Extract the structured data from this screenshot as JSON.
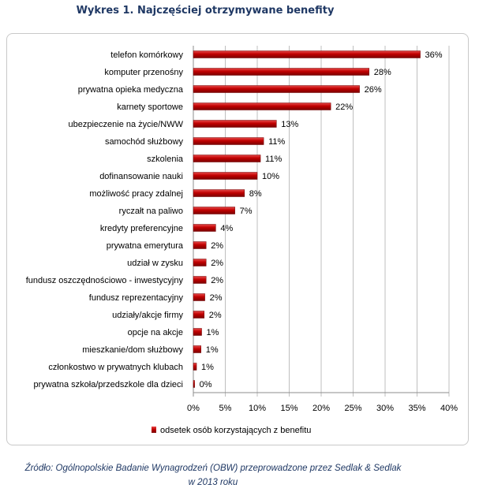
{
  "page": {
    "title": "Wykres 1. Najczęściej otrzymywane benefity",
    "source_line1": "Źródło: Ogólnopolskie Badanie Wynagrodzeń (OBW) przeprowadzone przez Sedlak & Sedlak",
    "source_line2": "w 2013 roku"
  },
  "colors": {
    "bar": "#C00000",
    "bar_light": "#E84A4A",
    "bar_dark": "#7A0000",
    "title": "#1F3864",
    "grid": "#BFBFBF",
    "text": "#000000"
  },
  "chart_data": {
    "type": "bar",
    "orientation": "horizontal",
    "title": "Wykres 1. Najczęściej otrzymywane benefity",
    "categories": [
      "telefon komórkowy",
      "komputer przenośny",
      "prywatna opieka medyczna",
      "karnety sportowe",
      "ubezpieczenie na życie/NWW",
      "samochód służbowy",
      "szkolenia",
      "dofinansowanie nauki",
      "możliwość pracy zdalnej",
      "ryczałt na paliwo",
      "kredyty preferencyjne",
      "prywatna emerytura",
      "udział w zysku",
      "fundusz oszczędnościowo - inwestycyjny",
      "fundusz reprezentacyjny",
      "udziały/akcje firmy",
      "opcje na akcje",
      "mieszkanie/dom służbowy",
      "członkostwo w prywatnych klubach",
      "prywatna szkoła/przedszkole  dla dzieci"
    ],
    "series": [
      {
        "name": "odsetek osób korzystających z benefitu",
        "values": [
          35.5,
          27.5,
          26,
          21.5,
          13,
          11,
          10.5,
          10,
          8,
          6.5,
          3.5,
          2,
          2,
          2,
          1.8,
          1.7,
          1.3,
          1.2,
          0.5,
          0.2
        ],
        "labels": [
          "36%",
          "28%",
          "26%",
          "22%",
          "13%",
          "11%",
          "11%",
          "10%",
          "8%",
          "7%",
          "4%",
          "2%",
          "2%",
          "2%",
          "2%",
          "2%",
          "1%",
          "1%",
          "1%",
          "0%"
        ]
      }
    ],
    "xlim": [
      0,
      40
    ],
    "xticks": [
      0,
      5,
      10,
      15,
      20,
      25,
      30,
      35,
      40
    ],
    "xtick_labels": [
      "0%",
      "5%",
      "10%",
      "15%",
      "20%",
      "25%",
      "30%",
      "35%",
      "40%"
    ],
    "grid": true,
    "legend": "bottom"
  }
}
